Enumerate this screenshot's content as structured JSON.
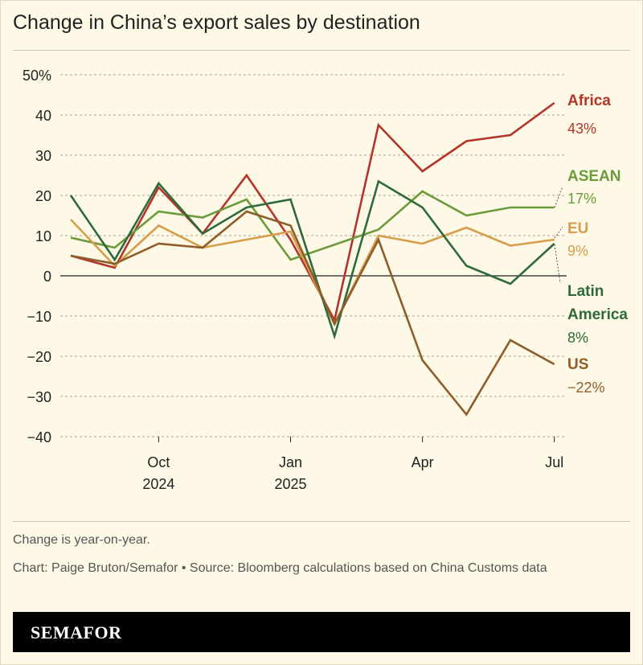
{
  "title": "Change in China’s export sales by destination",
  "notes": {
    "change": "Change is year-on-year.",
    "credit": "Chart: Paige Bruton/Semafor  • Source: Bloomberg calculations based on China Customs data"
  },
  "brand": "SEMAFOR",
  "chart_data": {
    "type": "line",
    "title": "Change in China’s export sales by destination",
    "x": [
      "2024-08",
      "2024-09",
      "2024-10",
      "2024-11",
      "2024-12",
      "2025-01",
      "2025-02",
      "2025-03",
      "2025-04",
      "2025-05",
      "2025-06",
      "2025-07"
    ],
    "x_ticks": [
      {
        "label": "Oct",
        "sub": "2024",
        "x": "2024-10"
      },
      {
        "label": "Jan",
        "sub": "2025",
        "x": "2025-01"
      },
      {
        "label": "Apr",
        "sub": "",
        "x": "2025-04"
      },
      {
        "label": "Jul",
        "sub": "",
        "x": "2025-07"
      }
    ],
    "y_ticks": [
      "50%",
      "40",
      "30",
      "20",
      "10",
      "0",
      "−10",
      "−20",
      "−30",
      "−40"
    ],
    "ylim": [
      -40,
      50
    ],
    "grid": true,
    "series": [
      {
        "name": "Africa",
        "end_label": "43%",
        "color": "#b3342b",
        "values": [
          5,
          2,
          22,
          10.5,
          25,
          9,
          -11,
          37.5,
          26,
          33.5,
          35,
          43
        ]
      },
      {
        "name": "ASEAN",
        "end_label": "17%",
        "color": "#6b9b3a",
        "values": [
          9.5,
          7,
          16,
          14.5,
          19,
          4,
          null,
          11.5,
          21,
          15,
          17,
          17
        ]
      },
      {
        "name": "EU",
        "end_label": "9%",
        "color": "#d59d4c",
        "values": [
          14,
          2.5,
          12.5,
          7,
          9,
          11,
          -12,
          10,
          8,
          12,
          7.5,
          9
        ]
      },
      {
        "name": "Latin America",
        "end_label": "8%",
        "color": "#2f6a3d",
        "values": [
          20,
          4,
          23,
          10.5,
          17,
          19,
          -15,
          23.5,
          17,
          2.5,
          -2,
          8
        ]
      },
      {
        "name": "US",
        "end_label": "−22%",
        "color": "#8e5d2b",
        "values": [
          5,
          3,
          8,
          7,
          16,
          12.5,
          -12,
          9,
          -21,
          -34.5,
          -16,
          -22
        ]
      }
    ]
  }
}
